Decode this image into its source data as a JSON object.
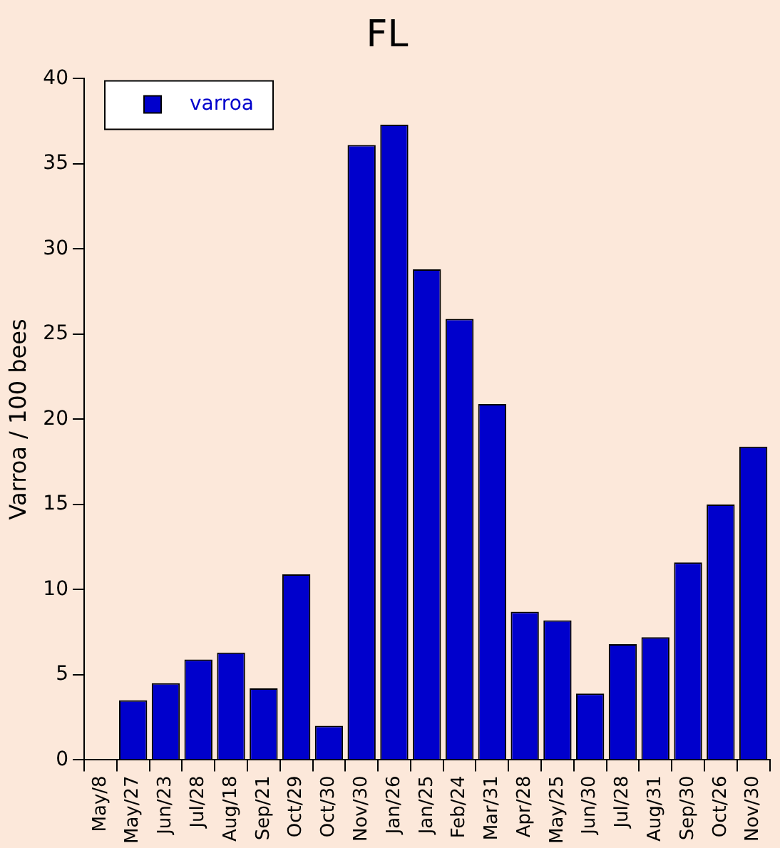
{
  "chart_data": {
    "type": "bar",
    "title": "FL",
    "ylabel": "Varroa / 100 bees",
    "categories": [
      "May/8",
      "May/27",
      "Jun/23",
      "Jul/28",
      "Aug/18",
      "Sep/21",
      "Oct/29",
      "Oct/30",
      "Nov/30",
      "Jan/26",
      "Jan/25",
      "Feb/24",
      "Mar/31",
      "Apr/28",
      "May/25",
      "Jun/30",
      "Jul/28",
      "Aug/31",
      "Sep/30",
      "Oct/26",
      "Nov/30"
    ],
    "series": [
      {
        "name": "varroa",
        "color": "#0000cc",
        "values": [
          null,
          3.5,
          4.5,
          5.9,
          6.3,
          4.2,
          10.9,
          2.0,
          36.1,
          37.3,
          28.8,
          25.9,
          20.9,
          8.7,
          8.2,
          3.9,
          6.8,
          7.2,
          11.6,
          15.0,
          18.4
        ]
      }
    ],
    "ylim": [
      0,
      40
    ],
    "yticks": [
      0,
      5,
      10,
      15,
      20,
      25,
      30,
      35,
      40
    ],
    "legend": "top left"
  }
}
